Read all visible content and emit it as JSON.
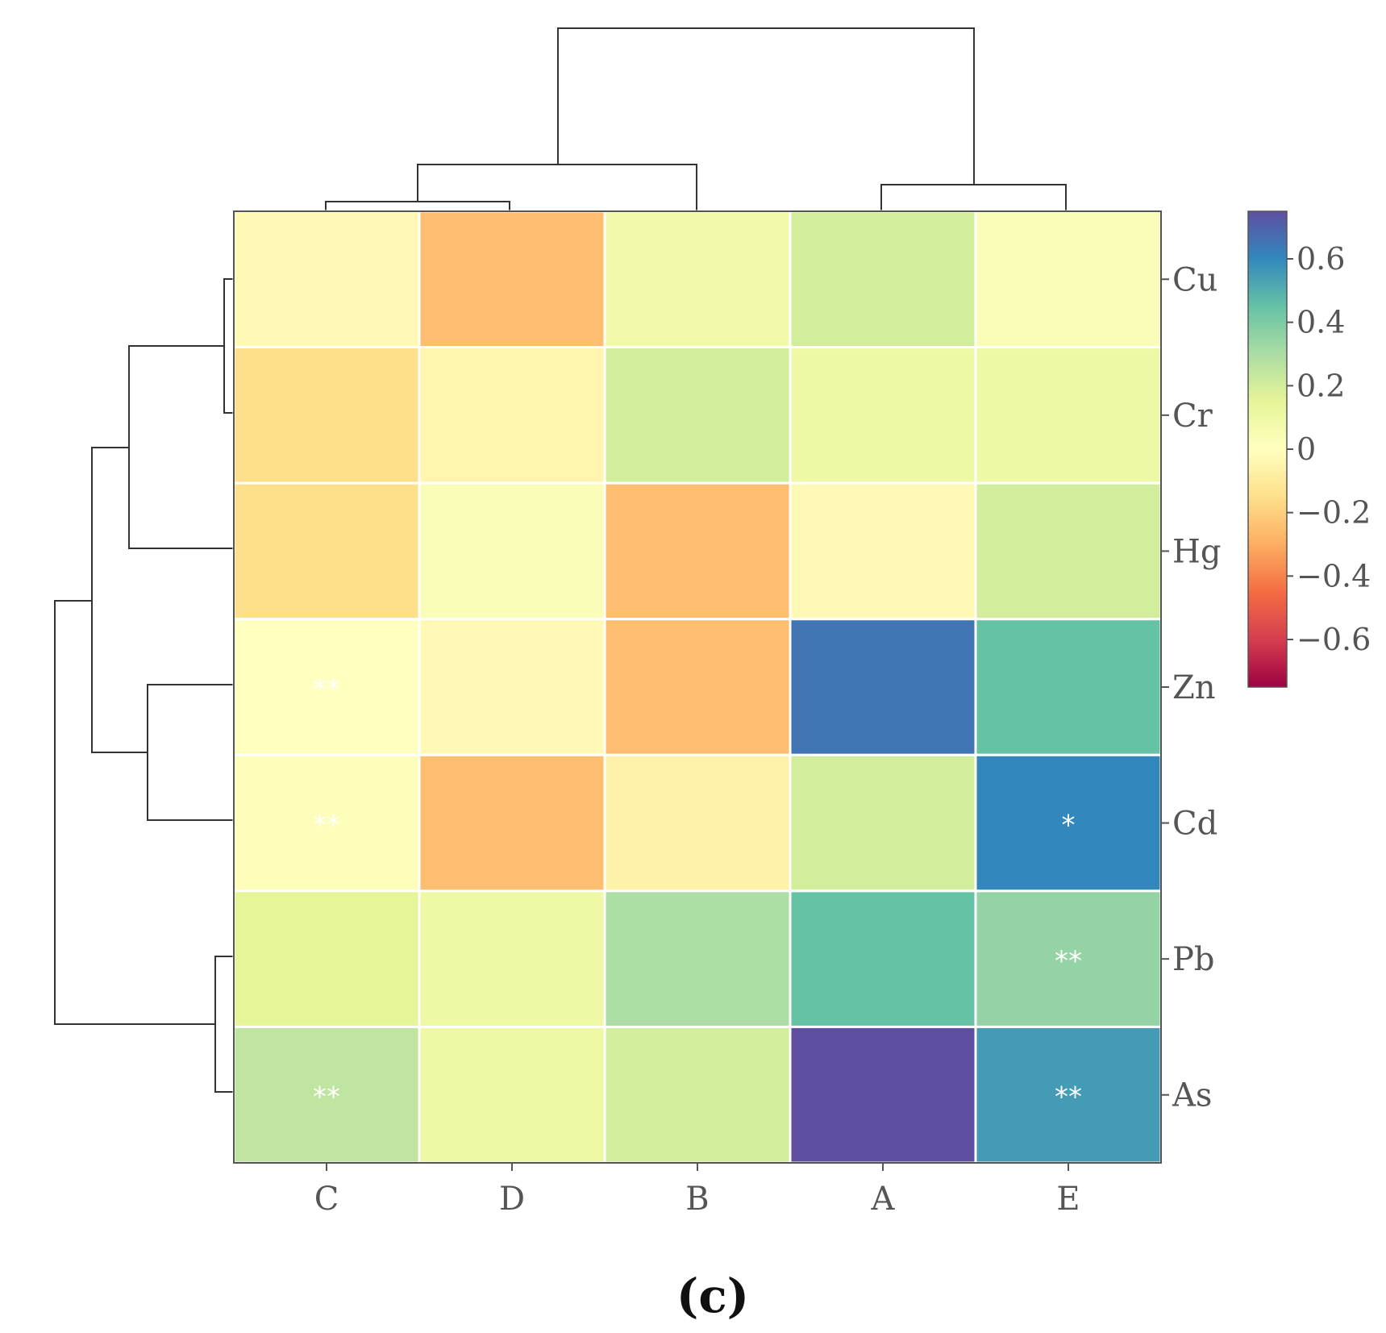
{
  "chart_data": {
    "type": "heatmap",
    "title": "",
    "panel_label": "(c)",
    "rows": [
      "Cu",
      "Cr",
      "Hg",
      "Zn",
      "Cd",
      "Pb",
      "As"
    ],
    "columns": [
      "C",
      "D",
      "B",
      "A",
      "E"
    ],
    "values": [
      [
        -0.03,
        -0.25,
        0.08,
        0.2,
        0.03
      ],
      [
        -0.15,
        -0.05,
        0.2,
        0.1,
        0.1
      ],
      [
        -0.15,
        0.03,
        -0.25,
        -0.03,
        0.2
      ],
      [
        0.0,
        -0.03,
        -0.25,
        0.65,
        0.45
      ],
      [
        0.02,
        -0.25,
        -0.07,
        0.2,
        0.6
      ],
      [
        0.15,
        0.1,
        0.3,
        0.45,
        0.35
      ],
      [
        0.25,
        0.1,
        0.2,
        0.75,
        0.55
      ]
    ],
    "significance": [
      [
        "",
        "",
        "",
        "",
        ""
      ],
      [
        "",
        "",
        "",
        "",
        ""
      ],
      [
        "",
        "",
        "",
        "",
        ""
      ],
      [
        "**",
        "",
        "",
        "",
        ""
      ],
      [
        "**",
        "",
        "",
        "",
        "*"
      ],
      [
        "",
        "",
        "",
        "",
        "**"
      ],
      [
        "**",
        "",
        "",
        "",
        "**"
      ]
    ],
    "colorbar": {
      "vmin": -0.75,
      "vmax": 0.75,
      "ticks": [
        0.6,
        0.4,
        0.2,
        0,
        -0.2,
        -0.4,
        -0.6
      ],
      "tick_labels": [
        "0.6",
        "0.4",
        "0.2",
        "0",
        "−0.2",
        "−0.4",
        "−0.6"
      ],
      "colormap": "Spectral",
      "stops": [
        "#9e0142",
        "#d53e4f",
        "#f46d43",
        "#fdae61",
        "#fee08b",
        "#ffffbf",
        "#e6f598",
        "#abdda4",
        "#66c2a5",
        "#3288bd",
        "#5e4fa2"
      ]
    },
    "column_dendrogram": "((C,D),B),(A,E)",
    "row_dendrogram": "(((Cu,Cr),Hg),(Zn,Cd)),(Pb,As)"
  }
}
